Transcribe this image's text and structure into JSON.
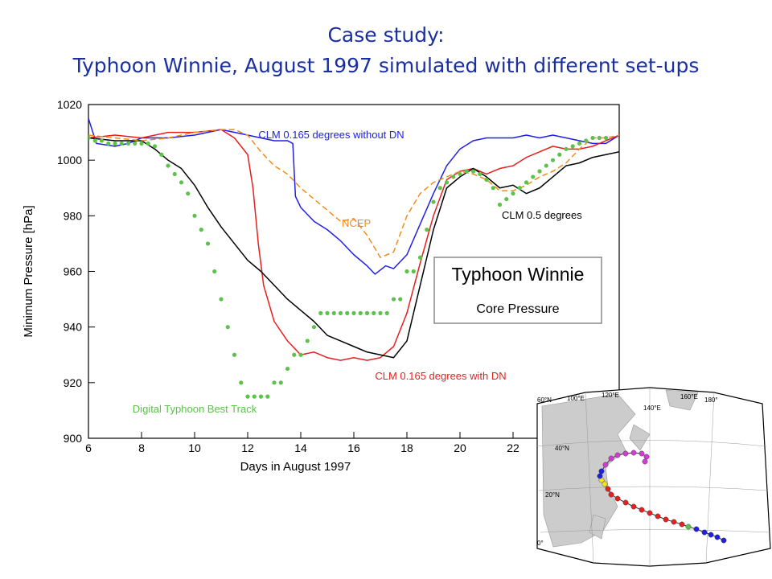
{
  "slide": {
    "title_line1": "Case study:",
    "title_line2": "Typhoon Winnie, August 1997 simulated with different set-ups"
  },
  "colors": {
    "title": "#1a2fa0",
    "blue_series": "#1f1fe6",
    "red_series": "#e61f1f",
    "black_series": "#000000",
    "ncep_series": "#f08c1a",
    "best_track": "#5cc24a",
    "map_land": "#cccccc",
    "map_magenta": "#d23cd2",
    "map_yellow": "#f0e61e"
  },
  "chart_data": {
    "type": "line",
    "title": "",
    "xlabel": "Days in August 1997",
    "ylabel": "Minimum Pressure [hPa]",
    "xlim": [
      6,
      26
    ],
    "ylim": [
      900,
      1020
    ],
    "xticks": [
      6,
      8,
      10,
      12,
      14,
      16,
      18,
      20,
      22
    ],
    "yticks": [
      900,
      920,
      940,
      960,
      980,
      1000,
      1020
    ],
    "legend_box": {
      "line1": "Typhoon Winnie",
      "line2": "Core Pressure",
      "placement": "center-right"
    },
    "series": [
      {
        "name": "CLM 0.165 degrees without DN",
        "color": "#1f1fe6",
        "style": "solid",
        "x": [
          6,
          6.3,
          7,
          7.5,
          8,
          9,
          10,
          11,
          12,
          12.5,
          13,
          13.5,
          13.7,
          13.8,
          14,
          14.5,
          15,
          15.5,
          16,
          16.5,
          16.8,
          17.2,
          17.5,
          18,
          18.5,
          19,
          19.5,
          20,
          20.5,
          21,
          21.5,
          22,
          22.5,
          23,
          23.5,
          24,
          24.5,
          25,
          25.5,
          26
        ],
        "y": [
          1015,
          1006,
          1005,
          1006,
          1008,
          1008,
          1009,
          1011,
          1009,
          1008,
          1007,
          1007,
          1006,
          987,
          983,
          978,
          975,
          971,
          966,
          962,
          959,
          962,
          961,
          966,
          977,
          988,
          998,
          1004,
          1007,
          1008,
          1008,
          1008,
          1009,
          1008,
          1009,
          1008,
          1007,
          1006,
          1006,
          1009
        ]
      },
      {
        "name": "CLM 0.165 degrees with DN",
        "color": "#e61f1f",
        "style": "solid",
        "x": [
          6,
          7,
          8,
          9,
          10,
          11,
          11.5,
          12,
          12.2,
          12.4,
          12.6,
          13,
          13.5,
          14,
          14.5,
          15,
          15.5,
          16,
          16.5,
          17,
          17.5,
          18,
          18.5,
          19,
          19.5,
          20,
          20.5,
          21,
          21.5,
          22,
          22.5,
          23,
          23.5,
          24,
          24.5,
          25,
          25.5,
          26
        ],
        "y": [
          1008,
          1009,
          1008,
          1010,
          1010,
          1011,
          1008,
          1002,
          990,
          970,
          955,
          942,
          935,
          930,
          931,
          929,
          928,
          929,
          928,
          929,
          933,
          945,
          963,
          980,
          993,
          996,
          997,
          995,
          997,
          998,
          1001,
          1003,
          1005,
          1004,
          1004,
          1005,
          1007,
          1009
        ]
      },
      {
        "name": "CLM 0.5 degrees",
        "color": "#000000",
        "style": "solid",
        "x": [
          6,
          7,
          8,
          8.5,
          9,
          9.5,
          10,
          10.5,
          11,
          11.5,
          12,
          12.5,
          13,
          13.5,
          14,
          14.5,
          15,
          15.5,
          16,
          16.5,
          17,
          17.5,
          18,
          18.5,
          19,
          19.5,
          20,
          20.5,
          21,
          21.5,
          22,
          22.5,
          23,
          23.5,
          24,
          24.5,
          25,
          25.5,
          26
        ],
        "y": [
          1008,
          1007,
          1007,
          1004,
          1000,
          997,
          991,
          983,
          976,
          970,
          964,
          960,
          955,
          950,
          946,
          942,
          937,
          935,
          933,
          931,
          930,
          929,
          935,
          955,
          975,
          990,
          994,
          997,
          994,
          990,
          991,
          988,
          990,
          994,
          998,
          999,
          1001,
          1002,
          1003
        ]
      },
      {
        "name": "NCEP",
        "color": "#f08c1a",
        "style": "dashed",
        "x": [
          6,
          7,
          8,
          9,
          10,
          11,
          11.5,
          12,
          12.5,
          13,
          13.5,
          14,
          14.5,
          15,
          15.5,
          16,
          16.5,
          17,
          17.5,
          18,
          18.5,
          19,
          19.5,
          20,
          20.5,
          21,
          21.5,
          22,
          22.5,
          23,
          23.5,
          24,
          24.5,
          25,
          25.5,
          26
        ],
        "y": [
          1009,
          1008,
          1007,
          1008,
          1010,
          1011,
          1011,
          1009,
          1003,
          998,
          995,
          990,
          986,
          982,
          978,
          979,
          973,
          965,
          967,
          980,
          988,
          992,
          994,
          996,
          995,
          993,
          989,
          989,
          991,
          994,
          996,
          999,
          1004,
          1008,
          1008,
          1009
        ]
      },
      {
        "name": "Digital Typhoon Best Track",
        "color": "#5cc24a",
        "style": "dots",
        "x": [
          6,
          6.25,
          6.5,
          6.75,
          7,
          7.25,
          7.5,
          7.75,
          8,
          8.25,
          8.5,
          8.75,
          9,
          9.25,
          9.5,
          9.75,
          10,
          10.25,
          10.5,
          10.75,
          11,
          11.25,
          11.5,
          11.75,
          12,
          12.25,
          12.5,
          12.75,
          13,
          13.25,
          13.5,
          13.75,
          14,
          14.25,
          14.5,
          14.75,
          15,
          15.25,
          15.5,
          15.75,
          16,
          16.25,
          16.5,
          16.75,
          17,
          17.25,
          17.5,
          17.75,
          18,
          18.25,
          18.5,
          18.75,
          19,
          19.25,
          19.5,
          19.75,
          20,
          20.25,
          20.5,
          20.75,
          21,
          21.25,
          21.5,
          21.75,
          22,
          22.25,
          22.5,
          22.75,
          23,
          23.25,
          23.5,
          23.75,
          24,
          24.25,
          24.5,
          24.75,
          25,
          25.25,
          25.5
        ],
        "y": [
          1008,
          1007,
          1007,
          1006,
          1006,
          1006,
          1006,
          1006,
          1006,
          1006,
          1005,
          1002,
          998,
          995,
          992,
          988,
          980,
          975,
          970,
          960,
          950,
          940,
          930,
          920,
          915,
          915,
          915,
          915,
          920,
          920,
          925,
          930,
          930,
          935,
          940,
          945,
          945,
          945,
          945,
          945,
          945,
          945,
          945,
          945,
          945,
          945,
          950,
          950,
          960,
          960,
          965,
          975,
          985,
          990,
          992,
          994,
          995,
          996,
          996,
          995,
          993,
          990,
          984,
          986,
          988,
          990,
          992,
          994,
          996,
          998,
          1000,
          1002,
          1004,
          1005,
          1006,
          1007,
          1008,
          1008,
          1008
        ]
      }
    ],
    "inline_labels": [
      {
        "text": "CLM 0.165 degrees without DN",
        "color": "#1f1fe6"
      },
      {
        "text": "NCEP",
        "color": "#f08c1a"
      },
      {
        "text": "CLM 0.5 degrees",
        "color": "#000000"
      },
      {
        "text": "CLM 0.165 degrees with DN",
        "color": "#e61f1f"
      },
      {
        "text": "Digital Typhoon Best Track",
        "color": "#5cc24a"
      }
    ]
  },
  "map": {
    "lat_labels": [
      "60°N",
      "40°N",
      "20°N",
      "0°"
    ],
    "lon_labels": [
      "100°E",
      "120°E",
      "140°E",
      "160°E",
      "180°"
    ],
    "track_segments": [
      {
        "name": "early",
        "color": "#1f1fe6"
      },
      {
        "name": "transition",
        "color": "#5cc24a"
      },
      {
        "name": "typhoon",
        "color": "#e61f1f"
      },
      {
        "name": "landfall",
        "color": "#f0e61e"
      },
      {
        "name": "late",
        "color": "#1f1fe6"
      },
      {
        "name": "extratropical",
        "color": "#d23cd2"
      }
    ]
  }
}
